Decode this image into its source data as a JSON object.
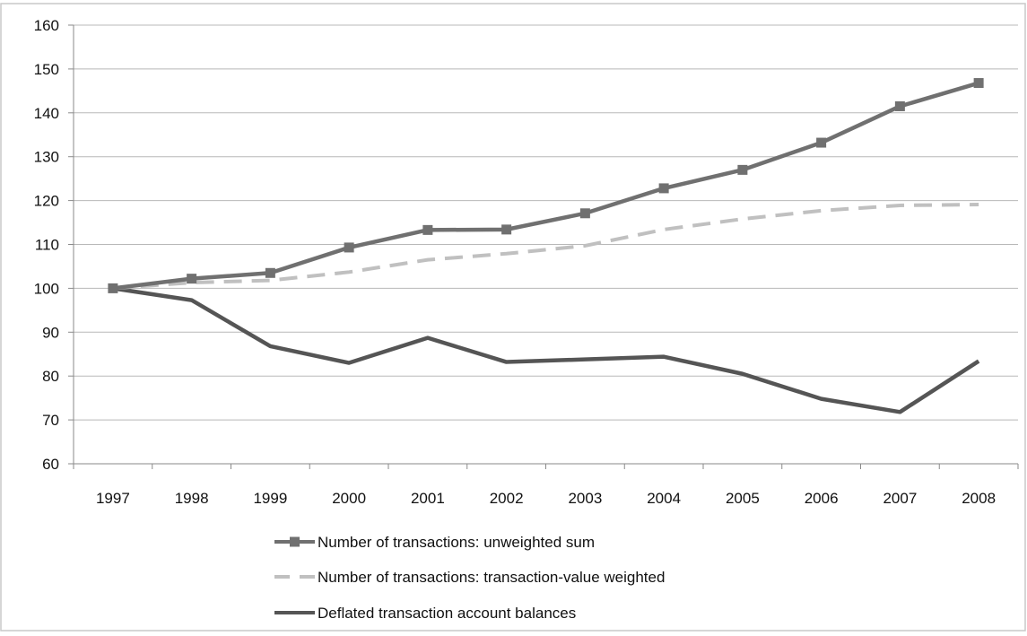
{
  "chart_data": {
    "type": "line",
    "title": "",
    "xlabel": "",
    "ylabel": "",
    "x": [
      "1997",
      "1998",
      "1999",
      "2000",
      "2001",
      "2002",
      "2003",
      "2004",
      "2005",
      "2006",
      "2007",
      "2008"
    ],
    "ylim": [
      60,
      160
    ],
    "yticks": [
      60,
      70,
      80,
      90,
      100,
      110,
      120,
      130,
      140,
      150,
      160
    ],
    "grid": "horizontal",
    "legend_position": "bottom",
    "series": [
      {
        "name": "Number of transactions: unweighted sum",
        "values": [
          100,
          102.2,
          103.5,
          109.3,
          113.3,
          113.4,
          117.1,
          122.8,
          127.0,
          133.2,
          141.5,
          146.8
        ],
        "color": "#707070",
        "style": "solid",
        "marker": "square"
      },
      {
        "name": "Number of transactions: transaction-value weighted",
        "values": [
          100,
          101.3,
          101.8,
          103.7,
          106.5,
          107.9,
          109.7,
          113.4,
          115.8,
          117.7,
          118.9,
          119.1
        ],
        "color": "#c0c0c0",
        "style": "dashed",
        "marker": "none"
      },
      {
        "name": "Deflated transaction account balances",
        "values": [
          100,
          97.3,
          86.8,
          83.0,
          88.7,
          83.2,
          83.8,
          84.4,
          80.5,
          74.8,
          71.8,
          83.4
        ],
        "color": "#555555",
        "style": "solid",
        "marker": "none"
      }
    ]
  }
}
